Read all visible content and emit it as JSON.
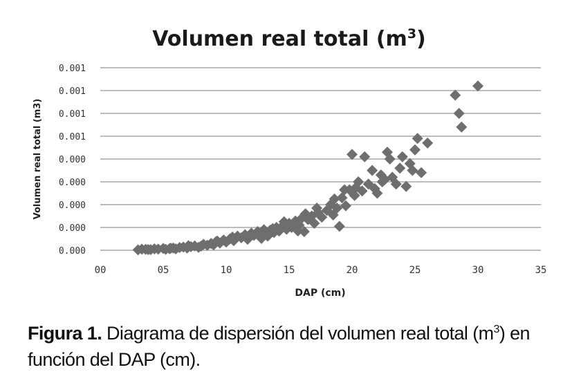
{
  "chart_data": {
    "type": "scatter",
    "title": {
      "prefix": "Volumen real total (m",
      "sup": "3",
      "suffix": ")"
    },
    "xlabel": "DAP (cm)",
    "ylabel": "Volumen real total (m3)",
    "xlim": [
      0,
      35
    ],
    "ylim": [
      0,
      0.0008
    ],
    "x_ticks": [
      {
        "value": 0,
        "label": "00"
      },
      {
        "value": 5,
        "label": "05"
      },
      {
        "value": 10,
        "label": "10"
      },
      {
        "value": 15,
        "label": "15"
      },
      {
        "value": 20,
        "label": "20"
      },
      {
        "value": 25,
        "label": "25"
      },
      {
        "value": 30,
        "label": "30"
      },
      {
        "value": 35,
        "label": "35"
      }
    ],
    "y_ticks": [
      {
        "value": 0,
        "label": "0.000"
      },
      {
        "value": 0.0001,
        "label": "0.000"
      },
      {
        "value": 0.0002,
        "label": "0.000"
      },
      {
        "value": 0.0003,
        "label": "0.000"
      },
      {
        "value": 0.0004,
        "label": "0.000"
      },
      {
        "value": 0.0005,
        "label": "0.001"
      },
      {
        "value": 0.0006,
        "label": "0.001"
      },
      {
        "value": 0.0007,
        "label": "0.001"
      },
      {
        "value": 0.0008,
        "label": "0.001"
      }
    ],
    "grid": "horizontal",
    "legend": "none",
    "marker": "diamond",
    "color": "#6e6e6e",
    "gridline_color": "#a6a6a6",
    "points": [
      [
        3.0,
        2e-06
      ],
      [
        3.3,
        5e-06
      ],
      [
        3.6,
        4e-06
      ],
      [
        4.0,
        3e-06
      ],
      [
        4.3,
        6e-06
      ],
      [
        4.6,
        5e-06
      ],
      [
        5.0,
        8e-06
      ],
      [
        5.2,
        4e-06
      ],
      [
        5.5,
        7e-06
      ],
      [
        5.8,
        1e-05
      ],
      [
        6.0,
        6e-06
      ],
      [
        6.3,
        1.2e-05
      ],
      [
        6.6,
        1.4e-05
      ],
      [
        6.9,
        1e-05
      ],
      [
        7.2,
        1.6e-05
      ],
      [
        7.5,
        1.9e-05
      ],
      [
        7.8,
        1.3e-05
      ],
      [
        8.0,
        1.8e-05
      ],
      [
        8.2,
        2.6e-05
      ],
      [
        8.5,
        2.2e-05
      ],
      [
        8.8,
        3e-05
      ],
      [
        9.0,
        2.4e-05
      ],
      [
        9.2,
        3.8e-05
      ],
      [
        9.5,
        3.2e-05
      ],
      [
        9.8,
        4.5e-05
      ],
      [
        10.0,
        3.6e-05
      ],
      [
        10.3,
        5e-05
      ],
      [
        10.6,
        4.2e-05
      ],
      [
        10.9,
        6.2e-05
      ],
      [
        11.2,
        5.5e-05
      ],
      [
        11.5,
        6.8e-05
      ],
      [
        11.8,
        5.8e-05
      ],
      [
        12.0,
        7.5e-05
      ],
      [
        12.2,
        6.5e-05
      ],
      [
        12.5,
        8.2e-05
      ],
      [
        12.8,
        5.2e-05
      ],
      [
        13.0,
        9e-05
      ],
      [
        13.2,
        7.2e-05
      ],
      [
        13.5,
        8.8e-05
      ],
      [
        13.8,
        7.8e-05
      ],
      [
        14.0,
        0.0001
      ],
      [
        14.2,
        8.4e-05
      ],
      [
        14.5,
        0.000108
      ],
      [
        14.8,
        9.2e-05
      ],
      [
        15.0,
        0.000118
      ],
      [
        15.2,
        0.0001
      ],
      [
        15.5,
        0.000128
      ],
      [
        15.8,
        0.00011
      ],
      [
        16.0,
        0.00014
      ],
      [
        16.2,
        8.2e-05
      ],
      [
        16.5,
        0.000135
      ],
      [
        16.8,
        0.00015
      ],
      [
        17.0,
        0.000118
      ],
      [
        17.3,
        0.000165
      ],
      [
        17.6,
        0.000145
      ],
      [
        18.0,
        0.000175
      ],
      [
        18.3,
        0.0002
      ],
      [
        18.5,
        0.000155
      ],
      [
        18.8,
        0.000185
      ],
      [
        19.0,
        0.000105
      ],
      [
        19.2,
        0.00023
      ],
      [
        19.5,
        0.000195
      ],
      [
        19.8,
        0.000265
      ],
      [
        20.0,
        0.00042
      ],
      [
        20.2,
        0.00024
      ],
      [
        20.5,
        0.0003
      ],
      [
        20.8,
        0.00026
      ],
      [
        21.0,
        0.00041
      ],
      [
        21.3,
        0.00029
      ],
      [
        21.6,
        0.00035
      ],
      [
        22.0,
        0.00025
      ],
      [
        22.3,
        0.00033
      ],
      [
        22.6,
        0.00031
      ],
      [
        22.8,
        0.00043
      ],
      [
        23.0,
        0.0004
      ],
      [
        23.2,
        0.00032
      ],
      [
        23.5,
        0.00029
      ],
      [
        23.8,
        0.00036
      ],
      [
        24.0,
        0.00041
      ],
      [
        24.3,
        0.00028
      ],
      [
        24.6,
        0.00038
      ],
      [
        25.0,
        0.00044
      ],
      [
        25.2,
        0.00049
      ],
      [
        25.5,
        0.00034
      ],
      [
        26.0,
        0.00047
      ],
      [
        28.2,
        0.00068
      ],
      [
        28.5,
        0.0006
      ],
      [
        28.7,
        0.00054
      ],
      [
        30.0,
        0.00072
      ],
      [
        3.8,
        3e-06
      ],
      [
        5.6,
        9e-06
      ],
      [
        7.0,
        2e-05
      ],
      [
        9.3,
        4e-05
      ],
      [
        10.5,
        5.8e-05
      ],
      [
        11.7,
        4.8e-05
      ],
      [
        12.7,
        7e-05
      ],
      [
        13.7,
        9.5e-05
      ],
      [
        14.6,
        0.000125
      ],
      [
        15.4,
        0.000108
      ],
      [
        16.3,
        0.00016
      ],
      [
        17.2,
        0.000185
      ],
      [
        18.6,
        0.000225
      ],
      [
        19.4,
        0.000265
      ],
      [
        20.3,
        0.000275
      ],
      [
        21.8,
        0.00027
      ],
      [
        22.4,
        0.0003
      ],
      [
        24.8,
        0.00035
      ],
      [
        13.3,
        6.2e-05
      ],
      [
        15.7,
        8.5e-05
      ]
    ]
  },
  "caption": {
    "label": "Figura 1.",
    "body": " Diagrama de dispersión del volumen real total (m",
    "sup": "3",
    "tail": ") en función del DAP (cm)."
  }
}
